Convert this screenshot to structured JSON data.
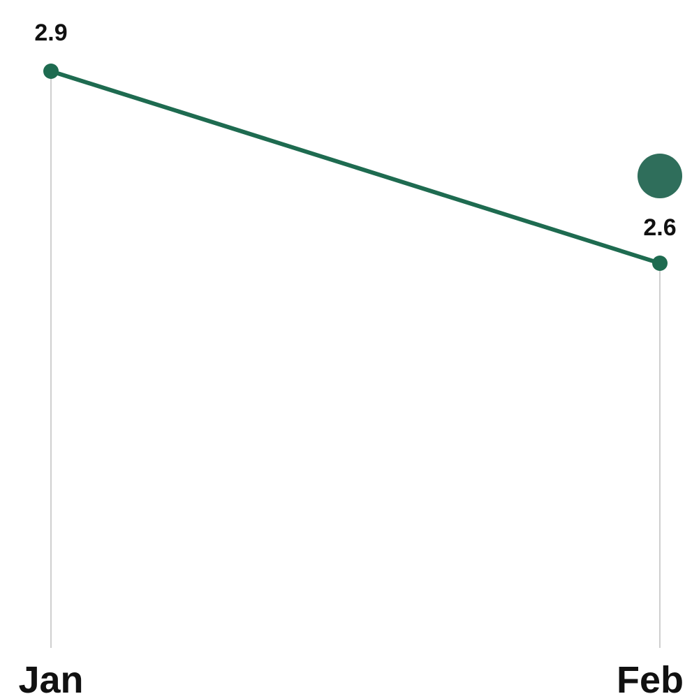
{
  "chart_data": {
    "type": "line",
    "categories": [
      "Jan",
      "Feb"
    ],
    "series": [
      {
        "values": [
          2.9,
          2.6
        ]
      }
    ],
    "data_labels": [
      "2.9",
      "2.6"
    ],
    "title": "",
    "xlabel": "",
    "ylabel": "",
    "grid": false,
    "legend": "none",
    "colors": {
      "line": "#1e6b50",
      "marker": "#1e6b50",
      "legend_dot": "#2f6e5b",
      "drop_line": "#cfcfcf",
      "text": "#111111"
    }
  }
}
